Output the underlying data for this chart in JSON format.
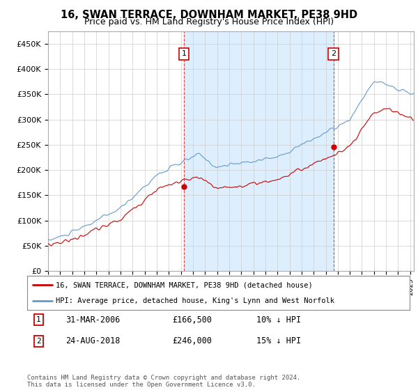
{
  "title": "16, SWAN TERRACE, DOWNHAM MARKET, PE38 9HD",
  "subtitle": "Price paid vs. HM Land Registry's House Price Index (HPI)",
  "title_fontsize": 10.5,
  "subtitle_fontsize": 9,
  "y_ticks": [
    0,
    50000,
    100000,
    150000,
    200000,
    250000,
    300000,
    350000,
    400000,
    450000
  ],
  "y_tick_labels": [
    "£0",
    "£50K",
    "£100K",
    "£150K",
    "£200K",
    "£250K",
    "£300K",
    "£350K",
    "£400K",
    "£450K"
  ],
  "ylim": [
    0,
    475000
  ],
  "xlim_start": 1995,
  "xlim_end": 2025.3,
  "legend_line1": "16, SWAN TERRACE, DOWNHAM MARKET, PE38 9HD (detached house)",
  "legend_line2": "HPI: Average price, detached house, King's Lynn and West Norfolk",
  "line1_color": "#cc0000",
  "line2_color": "#6699cc",
  "shade_color": "#ddeeff",
  "annotation1_label": "1",
  "annotation1_date": "31-MAR-2006",
  "annotation1_price": "£166,500",
  "annotation1_hpi": "10% ↓ HPI",
  "annotation2_label": "2",
  "annotation2_date": "24-AUG-2018",
  "annotation2_price": "£246,000",
  "annotation2_hpi": "15% ↓ HPI",
  "footer": "Contains HM Land Registry data © Crown copyright and database right 2024.\nThis data is licensed under the Open Government Licence v3.0.",
  "background_color": "#ffffff",
  "grid_color": "#cccccc",
  "tx1_x": 2006.25,
  "tx1_y": 166500,
  "tx2_x": 2018.65,
  "tx2_y": 246000
}
